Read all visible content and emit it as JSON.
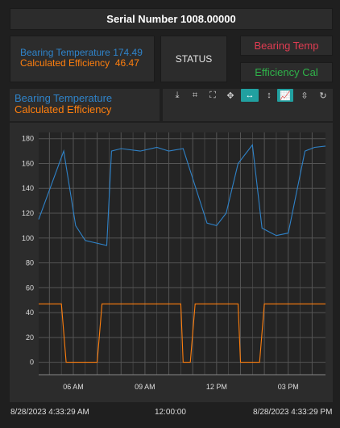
{
  "header": {
    "title": "Serial Number 1008.00000"
  },
  "readouts": {
    "temp_label": "Bearing Temperature",
    "temp_value": "174.49",
    "eff_label": "Calculated Efficiency",
    "eff_value": "46.47"
  },
  "status": {
    "label": "STATUS"
  },
  "buttons": {
    "temp": "Bearing Temp",
    "eff": "Efficiency Cal"
  },
  "legend": {
    "temp": "Bearing Temperature",
    "eff": "Calculated Efficiency"
  },
  "toolbar": [
    {
      "icon": "download-icon"
    },
    {
      "icon": "zoom-select-icon"
    },
    {
      "icon": "fullscreen-icon"
    },
    {
      "icon": "pan-icon"
    },
    {
      "icon": "horizontal-zoom-icon",
      "active": true
    },
    {
      "icon": "vertical-zoom-icon"
    },
    {
      "icon": "line-chart-icon",
      "active": true
    },
    {
      "icon": "compare-icon"
    },
    {
      "icon": "reset-icon"
    }
  ],
  "colors": {
    "temp": "#2f83c9",
    "eff": "#ff7f0e",
    "grid": "#555555",
    "panel": "#2c2c2c"
  },
  "footer": {
    "left": "8/28/2023 4:33:29 AM",
    "center": "12:00:00",
    "right": "8/28/2023 4:33:29 PM"
  },
  "chart_data": {
    "type": "line",
    "x_ticks": [
      "06 AM",
      "09 AM",
      "12 PM",
      "03 PM"
    ],
    "y_ticks": [
      "0",
      "20",
      "40",
      "60",
      "80",
      "100",
      "120",
      "140",
      "160",
      "180"
    ],
    "ylim": [
      -10,
      185
    ],
    "xlim": [
      4.55,
      16.56
    ],
    "series": [
      {
        "name": "Bearing Temperature",
        "x": [
          4.55,
          5.6,
          6.1,
          6.5,
          7.4,
          7.6,
          8.0,
          8.8,
          9.5,
          10.0,
          10.6,
          11.6,
          12.0,
          12.4,
          12.9,
          13.5,
          13.9,
          14.5,
          15.0,
          15.7,
          16.1,
          16.56
        ],
        "y": [
          115,
          170,
          110,
          98,
          94,
          170,
          172,
          170,
          173,
          170,
          172,
          112,
          110,
          120,
          160,
          175,
          108,
          102,
          104,
          170,
          173,
          174
        ]
      },
      {
        "name": "Calculated Efficiency",
        "x": [
          4.55,
          4.9,
          5.5,
          5.7,
          6.1,
          6.5,
          7.0,
          7.2,
          7.4,
          10.0,
          10.5,
          10.6,
          10.9,
          11.1,
          11.3,
          12.0,
          12.5,
          12.9,
          13.0,
          13.3,
          13.8,
          14.0,
          14.3,
          14.7,
          16.56
        ],
        "y": [
          47,
          47,
          47,
          0,
          0,
          0,
          0,
          47,
          47,
          47,
          47,
          0,
          0,
          47,
          47,
          47,
          47,
          47,
          0,
          0,
          0,
          47,
          47,
          47,
          47
        ]
      }
    ]
  }
}
